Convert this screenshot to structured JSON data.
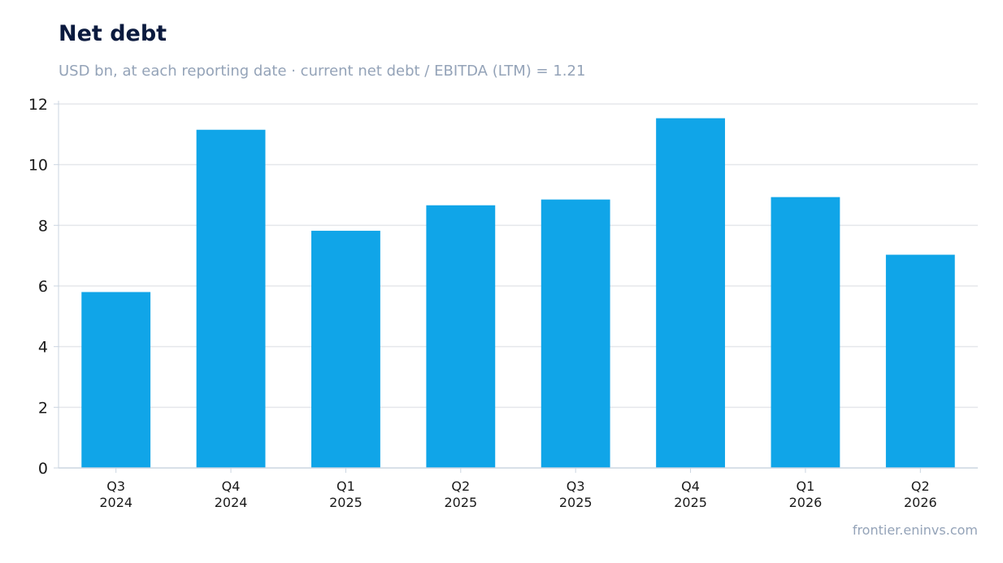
{
  "title": "Net debt",
  "subtitle": "USD bn, at each reporting date · current net debt / EBITDA (LTM) = 1.21",
  "footer": "frontier.eninvs.com",
  "colors": {
    "bar": "#10a5e8",
    "grid": "#e5e7eb",
    "axis": "#cbd5e1",
    "title": "#0b1a3e",
    "muted": "#94a3b8"
  },
  "chart_data": {
    "type": "bar",
    "categories": [
      [
        "Q3",
        "2024"
      ],
      [
        "Q4",
        "2024"
      ],
      [
        "Q1",
        "2025"
      ],
      [
        "Q2",
        "2025"
      ],
      [
        "Q3",
        "2025"
      ],
      [
        "Q4",
        "2025"
      ],
      [
        "Q1",
        "2026"
      ],
      [
        "Q2",
        "2026"
      ]
    ],
    "values": [
      5.8,
      11.15,
      7.82,
      8.66,
      8.85,
      11.53,
      8.93,
      7.03
    ],
    "ylim": [
      0,
      12
    ],
    "yticks": [
      0,
      2,
      4,
      6,
      8,
      10,
      12
    ],
    "grid": true,
    "xlabel": "",
    "ylabel": ""
  }
}
